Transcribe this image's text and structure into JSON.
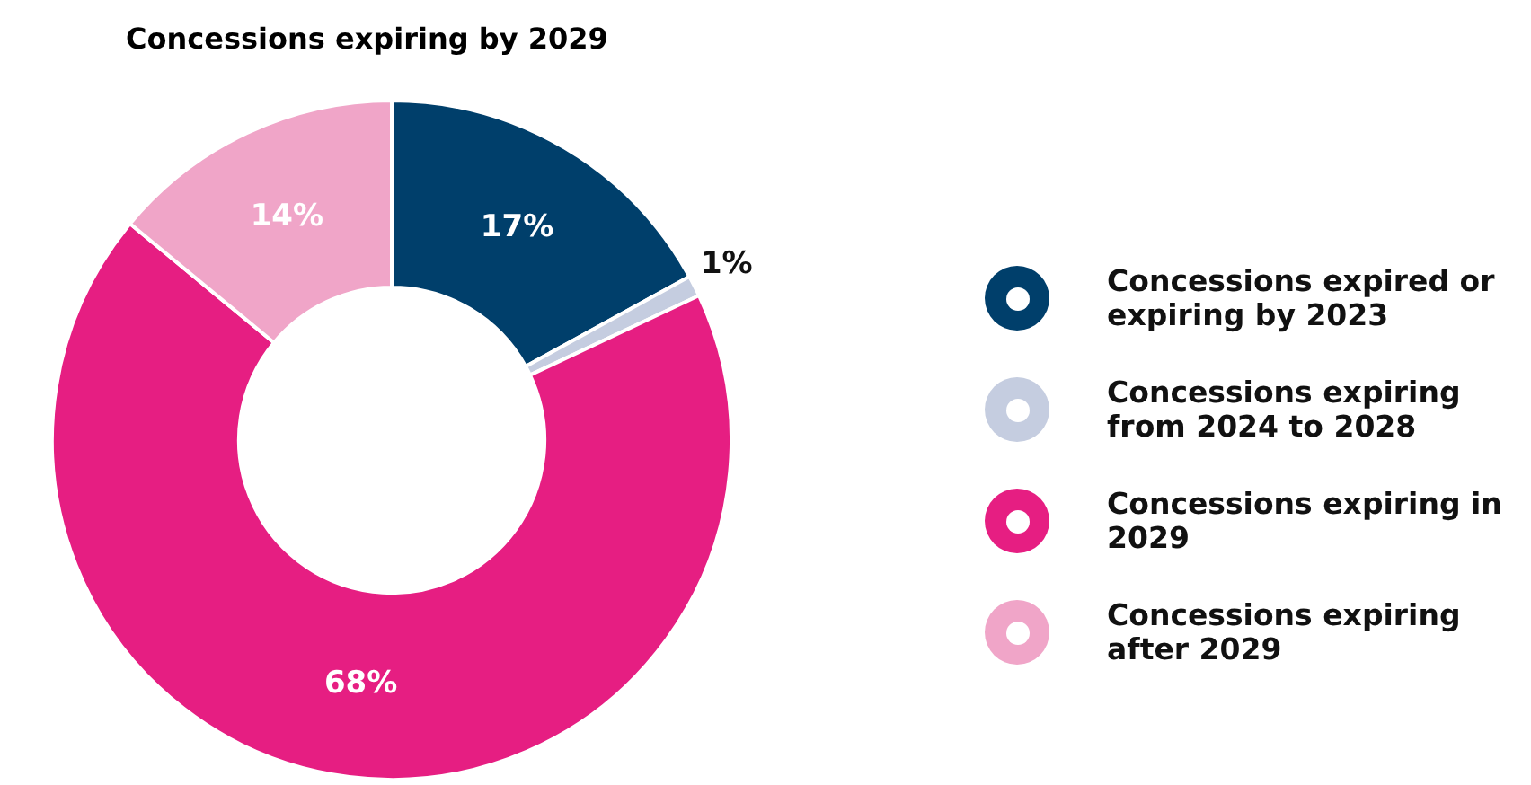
{
  "chart_data": {
    "type": "donut",
    "title": "Concessions expiring by 2029",
    "categories": [
      "Concessions expired or expiring by 2023",
      "Concessions expiring from 2024 to 2028",
      "Concessions expiring in 2029",
      "Concessions expiring after 2029"
    ],
    "values": [
      17,
      1,
      68,
      14
    ],
    "colors": [
      "#003f6b",
      "#c5cde0",
      "#e61e82",
      "#f0a5c8"
    ],
    "value_labels": [
      "17%",
      "1%",
      "68%",
      "14%"
    ],
    "legend": "right"
  }
}
